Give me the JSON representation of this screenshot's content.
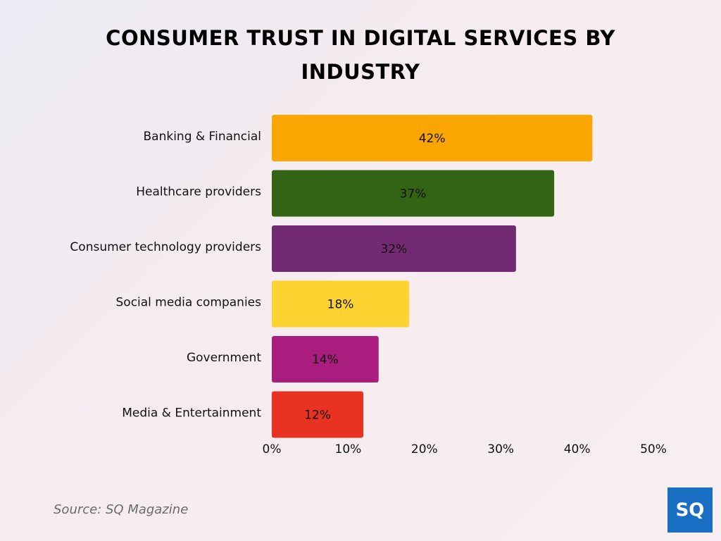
{
  "chart_data": {
    "type": "barh",
    "title": "CONSUMER TRUST IN DIGITAL SERVICES BY INDUSTRY",
    "categories": [
      "Banking & Financial",
      "Healthcare providers",
      "Consumer technology providers",
      "Social media companies",
      "Government",
      "Media & Entertainment"
    ],
    "values": [
      42,
      37,
      32,
      18,
      14,
      12
    ],
    "value_labels": [
      "42%",
      "37%",
      "32%",
      "18%",
      "14%",
      "12%"
    ],
    "colors": [
      "#faa500",
      "#336414",
      "#722a72",
      "#fdd331",
      "#a91d7e",
      "#e83222"
    ],
    "xlim": [
      0,
      50
    ],
    "xticks": [
      {
        "value": 0,
        "label": "0%"
      },
      {
        "value": 10,
        "label": "10%"
      },
      {
        "value": 20,
        "label": "20%"
      },
      {
        "value": 30,
        "label": "30%"
      },
      {
        "value": 40,
        "label": "40%"
      },
      {
        "value": 50,
        "label": "50%"
      }
    ],
    "source": "Source: SQ Magazine",
    "logo": "SQ"
  }
}
